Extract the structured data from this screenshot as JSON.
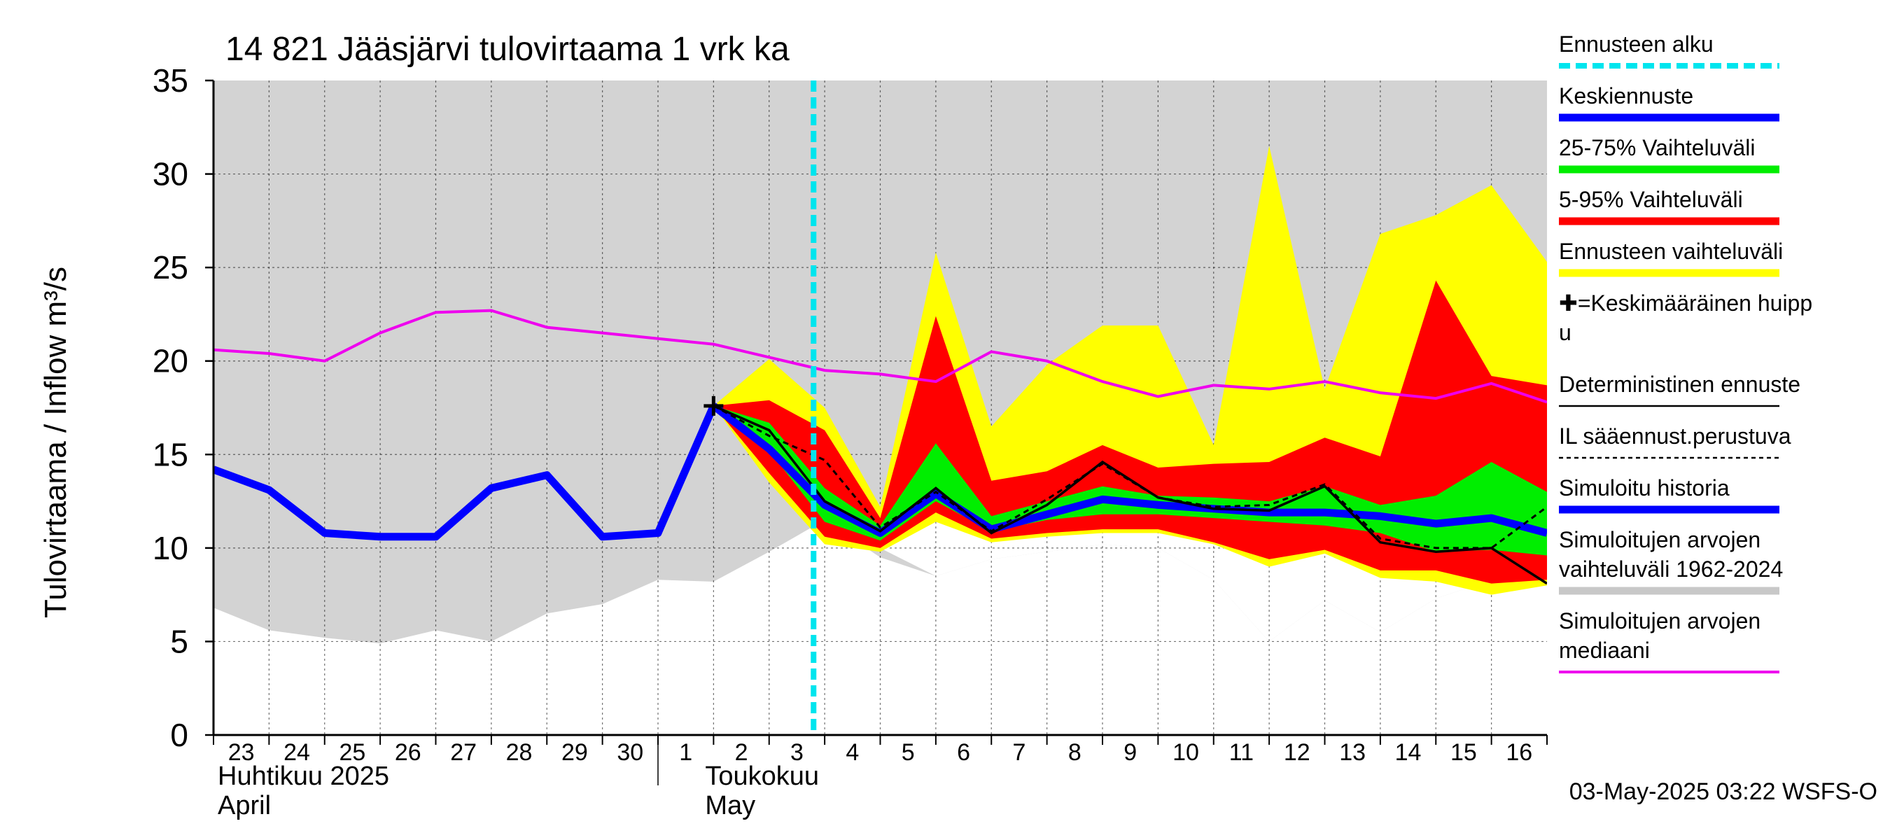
{
  "chart_data": {
    "type": "area",
    "title": "14 821 Jääsjärvi tulovirtaama 1 vrk ka",
    "ylabel": "Tulovirtaama / Inflow    m³/s",
    "ylim": [
      0,
      35
    ],
    "yticks": [
      0,
      5,
      10,
      15,
      20,
      25,
      30,
      35
    ],
    "x_day_labels": [
      "23",
      "24",
      "25",
      "26",
      "27",
      "28",
      "29",
      "30",
      "1",
      "2",
      "3",
      "4",
      "5",
      "6",
      "7",
      "8",
      "9",
      "10",
      "11",
      "12",
      "13",
      "14",
      "15",
      "16"
    ],
    "month_labels": [
      {
        "line1": "Huhtikuu  2025",
        "line2": "April"
      },
      {
        "line1": "Toukokuu",
        "line2": "May"
      }
    ],
    "footer": "03-May-2025 03:22 WSFS-O",
    "forecast_start_day": 10.8,
    "legend": [
      {
        "label": "Ennusteen alku",
        "color": "#00e5ee",
        "style": "dashed"
      },
      {
        "label": "Keskiennuste",
        "color": "#0000ff",
        "style": "thick"
      },
      {
        "label": "25-75% Vaihteluväli",
        "color": "#00ee00",
        "style": "thick"
      },
      {
        "label": "5-95% Vaihteluväli",
        "color": "#ff0000",
        "style": "thick"
      },
      {
        "label": "Ennusteen vaihteluväli",
        "color": "#ffff00",
        "style": "thick"
      },
      {
        "label": "✚=Keskimääräinen huipp",
        "label2": "u",
        "color": "#000000",
        "style": "none"
      },
      {
        "label": "Deterministinen ennuste",
        "color": "#000000",
        "style": "thin"
      },
      {
        "label": "IL sääennust.perustuva",
        "color": "#000000",
        "style": "dotted"
      },
      {
        "label": "Simuloitu historia",
        "color": "#0000ff",
        "style": "thick"
      },
      {
        "label": "Simuloitujen arvojen",
        "label2": "vaihteluväli 1962-2024",
        "color": "#c8c8c8",
        "style": "thick"
      },
      {
        "label": "Simuloitujen arvojen",
        "label2": "mediaani",
        "color": "#ee00ee",
        "style": "medium"
      }
    ],
    "colors": {
      "hist_range": "#d3d3d3",
      "median": "#ee00ee",
      "sim_history": "#0000ff",
      "forecast_range": "#ffff00",
      "p5_95": "#ff0000",
      "p25_75": "#00ee00",
      "mean_forecast": "#0000ff",
      "deterministic": "#000000",
      "forecast_start": "#00e5ee",
      "white_band": "#ffffff"
    },
    "series": {
      "hist_range": {
        "x": [
          0,
          1,
          2,
          3,
          4,
          5,
          6,
          7,
          8,
          9,
          10,
          11,
          12,
          13,
          14,
          15,
          16,
          17,
          18,
          19,
          20,
          21,
          22,
          23,
          24
        ],
        "upper": [
          35,
          35,
          35,
          35,
          35,
          35,
          35,
          35,
          35,
          35,
          35,
          35,
          35,
          35,
          35,
          35,
          35,
          35,
          35,
          35,
          35,
          35,
          35,
          35,
          35
        ],
        "lower": [
          6.8,
          5.6,
          5.2,
          4.9,
          5.6,
          5.0,
          6.5,
          7.0,
          8.3,
          8.2,
          9.8,
          11.5,
          9.5,
          8.5,
          9.4,
          9.8,
          10.2,
          10.0,
          8.3,
          5.0,
          7.2,
          5.5,
          7.3,
          8.3,
          9.0
        ]
      },
      "white_band": {
        "x": [
          11,
          12,
          13,
          14,
          15,
          16,
          17,
          18,
          19,
          20,
          21,
          22,
          23,
          24
        ],
        "lower": [
          11.5,
          10.0,
          8.5,
          9.4,
          9.8,
          10.2,
          10.0,
          8.3,
          5.0,
          7.2,
          5.5,
          7.3,
          8.3,
          9.0
        ],
        "upper": [
          12.0,
          10.5,
          11.5,
          11.0,
          11.2,
          11.3,
          11.4,
          11.5,
          11.3,
          11.0,
          10.8,
          10.2,
          10.0,
          9.6
        ]
      },
      "median": {
        "x": [
          0,
          1,
          2,
          3,
          4,
          5,
          6,
          7,
          8,
          9,
          10,
          11,
          12,
          13,
          14,
          15,
          16,
          17,
          18,
          19,
          20,
          21,
          22,
          23,
          24
        ],
        "y": [
          20.6,
          20.4,
          20.0,
          21.5,
          22.6,
          22.7,
          21.8,
          21.5,
          21.2,
          20.9,
          20.2,
          19.5,
          19.3,
          18.9,
          20.5,
          20.0,
          18.9,
          18.1,
          18.7,
          18.5,
          18.9,
          18.3,
          18.0,
          18.8,
          17.8
        ]
      },
      "sim_history": {
        "x": [
          0,
          1,
          2,
          3,
          4,
          5,
          6,
          7,
          8,
          9
        ],
        "y": [
          14.2,
          13.1,
          10.8,
          10.6,
          10.6,
          13.2,
          13.9,
          10.6,
          10.8,
          17.6
        ]
      },
      "forecast_range": {
        "x": [
          9,
          10,
          11,
          12,
          13,
          14,
          15,
          16,
          17,
          18,
          19,
          20,
          21,
          22,
          23,
          24
        ],
        "upper": [
          17.6,
          20.1,
          17.5,
          12.2,
          25.8,
          16.5,
          19.8,
          21.9,
          21.9,
          15.5,
          31.5,
          18.5,
          26.8,
          27.8,
          29.4,
          25.3
        ],
        "lower": [
          17.6,
          13.5,
          10.2,
          9.8,
          11.4,
          10.3,
          10.6,
          10.8,
          10.8,
          10.2,
          9.0,
          9.7,
          8.4,
          8.2,
          7.5,
          8.0
        ]
      },
      "p5_95": {
        "x": [
          9,
          10,
          11,
          12,
          13,
          14,
          15,
          16,
          17,
          18,
          19,
          20,
          21,
          22,
          23,
          24
        ],
        "upper": [
          17.6,
          17.9,
          16.3,
          11.6,
          22.4,
          13.6,
          14.1,
          15.5,
          14.3,
          14.5,
          14.6,
          15.9,
          14.9,
          24.3,
          19.2,
          18.7
        ],
        "lower": [
          17.6,
          14.0,
          10.6,
          10.0,
          11.9,
          10.5,
          10.8,
          11.0,
          11.0,
          10.3,
          9.4,
          9.9,
          8.8,
          8.8,
          8.1,
          8.3
        ]
      },
      "p25_75": {
        "x": [
          9,
          10,
          11,
          12,
          13,
          14,
          15,
          16,
          17,
          18,
          19,
          20,
          21,
          22,
          23,
          24
        ],
        "upper": [
          17.6,
          16.7,
          13.2,
          11.2,
          15.6,
          11.7,
          12.5,
          13.3,
          12.8,
          12.7,
          12.5,
          13.3,
          12.3,
          12.8,
          14.6,
          13.0
        ],
        "lower": [
          17.6,
          15.2,
          11.4,
          10.4,
          12.5,
          10.9,
          11.5,
          11.8,
          11.8,
          11.6,
          11.4,
          11.2,
          10.8,
          9.8,
          9.9,
          9.6
        ]
      },
      "mean_forecast": {
        "x": [
          9,
          10,
          11,
          12,
          13,
          14,
          15,
          16,
          17,
          18,
          19,
          20,
          21,
          22,
          23,
          24
        ],
        "y": [
          17.6,
          15.3,
          12.3,
          10.8,
          12.9,
          11.0,
          11.8,
          12.6,
          12.3,
          12.1,
          11.9,
          11.9,
          11.7,
          11.3,
          11.6,
          10.8
        ]
      },
      "deterministic": {
        "x": [
          9,
          10,
          11,
          12,
          13,
          14,
          15,
          16,
          17,
          18,
          19,
          20,
          21,
          22,
          23,
          24
        ],
        "y": [
          17.6,
          16.3,
          12.5,
          10.9,
          13.2,
          10.8,
          12.3,
          14.6,
          12.7,
          12.1,
          12.0,
          13.3,
          10.3,
          9.8,
          10.0,
          8.1
        ]
      },
      "il_forecast": {
        "x": [
          9,
          10,
          11,
          12,
          13,
          14,
          15,
          16,
          17,
          18,
          19,
          20,
          21,
          22,
          23,
          24
        ],
        "y": [
          17.6,
          16.0,
          14.7,
          11.1,
          13.0,
          10.9,
          12.6,
          14.5,
          12.7,
          12.2,
          12.3,
          13.4,
          10.5,
          10.0,
          10.0,
          12.2
        ]
      },
      "mean_peak": {
        "x": 9,
        "y": 17.6
      }
    }
  }
}
